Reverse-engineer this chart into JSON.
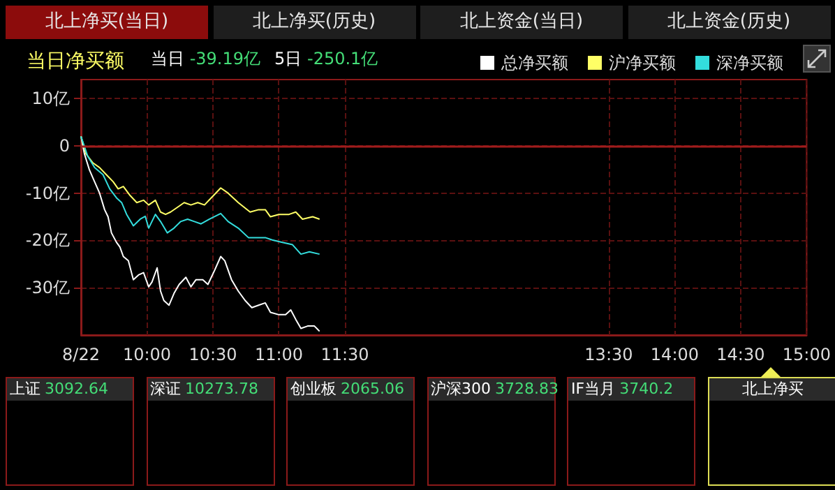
{
  "chart_data": {
    "type": "line",
    "title": "当日净买额",
    "annotations": [
      "北上净买(当日)",
      "北上净买(历史)",
      "北上资金(当日)",
      "北上资金(历史)",
      "当日",
      "-39.19亿",
      "5日",
      "-250.1亿",
      "上证",
      "3092.64",
      "深证",
      "10273.78",
      "创业板",
      "2065.06",
      "沪深300",
      "3728.83",
      "IF当月",
      "3740.2",
      "北上净买"
    ],
    "series": [
      {
        "name": "总净买额",
        "color": "#ffffff",
        "x": [
          9.5,
          9.526,
          9.564,
          9.603,
          9.641,
          9.679,
          9.705,
          9.731,
          9.769,
          9.795,
          9.821,
          9.859,
          9.897,
          9.936,
          9.974,
          10.013,
          10.038,
          10.077,
          10.103,
          10.128,
          10.167,
          10.205,
          10.244,
          10.295,
          10.333,
          10.372,
          10.423,
          10.462,
          10.513,
          10.559,
          10.59,
          10.641,
          10.692,
          10.744,
          10.795,
          10.846,
          10.897,
          10.936,
          11,
          11.051,
          11.09,
          11.128,
          11.167,
          11.218,
          11.269,
          11.287,
          11.308
        ],
        "values": [
          2,
          -1.7,
          -5.1,
          -7.6,
          -10,
          -13.5,
          -15,
          -18.4,
          -20.4,
          -21.4,
          -23.4,
          -24.3,
          -28.3,
          -27.3,
          -26.8,
          -29.8,
          -28.8,
          -25.8,
          -30.7,
          -32.7,
          -33.7,
          -31.2,
          -29.3,
          -27.8,
          -29.8,
          -28.3,
          -28.3,
          -29.3,
          -26.3,
          -23.4,
          -24.3,
          -28.3,
          -30.7,
          -32.7,
          -34.2,
          -33.7,
          -33.2,
          -35.2,
          -35.7,
          -35.7,
          -34.7,
          -36.7,
          -38.6,
          -38.1,
          -38.1,
          -38.6,
          -39.2
        ]
      },
      {
        "name": "沪净买额",
        "color": "#ffff66",
        "x": [
          9.5,
          9.538,
          9.59,
          9.641,
          9.692,
          9.744,
          9.782,
          9.821,
          9.872,
          9.923,
          9.974,
          10.013,
          10.064,
          10.103,
          10.141,
          10.179,
          10.231,
          10.282,
          10.333,
          10.385,
          10.436,
          10.487,
          10.559,
          10.615,
          10.692,
          10.782,
          10.846,
          10.897,
          10.936,
          11,
          11.077,
          11.128,
          11.179,
          11.256,
          11.308
        ],
        "values": [
          2,
          -1.7,
          -3.6,
          -4.6,
          -6.1,
          -7.6,
          -9.1,
          -8.6,
          -10.5,
          -12,
          -11.5,
          -12.5,
          -11.5,
          -14,
          -14.5,
          -14,
          -13,
          -12,
          -12.5,
          -12,
          -12.5,
          -11,
          -8.9,
          -10,
          -12,
          -14,
          -13.5,
          -13.5,
          -15,
          -14.5,
          -14.5,
          -14,
          -15.5,
          -15,
          -15.5
        ]
      },
      {
        "name": "深净买额",
        "color": "#33dddd",
        "x": [
          9.5,
          9.551,
          9.603,
          9.667,
          9.718,
          9.769,
          9.808,
          9.846,
          9.897,
          9.949,
          9.987,
          10.013,
          10.064,
          10.103,
          10.154,
          10.205,
          10.256,
          10.308,
          10.359,
          10.41,
          10.474,
          10.559,
          10.615,
          10.692,
          10.769,
          10.846,
          10.897,
          10.949,
          11.026,
          11.103,
          11.167,
          11.231,
          11.308
        ],
        "values": [
          2,
          -2.2,
          -4.6,
          -6.1,
          -9.1,
          -11,
          -12,
          -14.5,
          -16.9,
          -15.5,
          -14.9,
          -17.4,
          -14.5,
          -16,
          -18.4,
          -17.4,
          -16,
          -15.5,
          -16,
          -16.5,
          -15.5,
          -14.3,
          -16,
          -17.4,
          -19.4,
          -19.4,
          -19.4,
          -19.9,
          -20.4,
          -20.9,
          -22.9,
          -22.4,
          -22.9
        ]
      }
    ],
    "xlim": [
      9.5,
      15
    ],
    "xticks": [
      {
        "value": 9.5,
        "label": "8/22"
      },
      {
        "value": 10,
        "label": "10:00"
      },
      {
        "value": 10.5,
        "label": "10:30"
      },
      {
        "value": 11,
        "label": "11:00"
      },
      {
        "value": 11.5,
        "label": "11:30"
      },
      {
        "value": 13.5,
        "label": "13:30"
      },
      {
        "value": 14,
        "label": "14:00"
      },
      {
        "value": 14.5,
        "label": "14:30"
      },
      {
        "value": 15,
        "label": "15:00"
      }
    ],
    "ylim": [
      -40,
      14
    ],
    "yticks": [
      {
        "value": 10,
        "label": "10亿"
      },
      0,
      {
        "value": -10,
        "label": "-10亿"
      },
      {
        "value": -20,
        "label": "-20亿"
      },
      {
        "value": -30,
        "label": "-30亿"
      }
    ],
    "ref_lines": [
      {
        "axis": "y",
        "value": 0,
        "color": "#a01c1c"
      }
    ],
    "grid": true,
    "legend": "top right",
    "marker": "none",
    "line_style": "solid"
  }
}
